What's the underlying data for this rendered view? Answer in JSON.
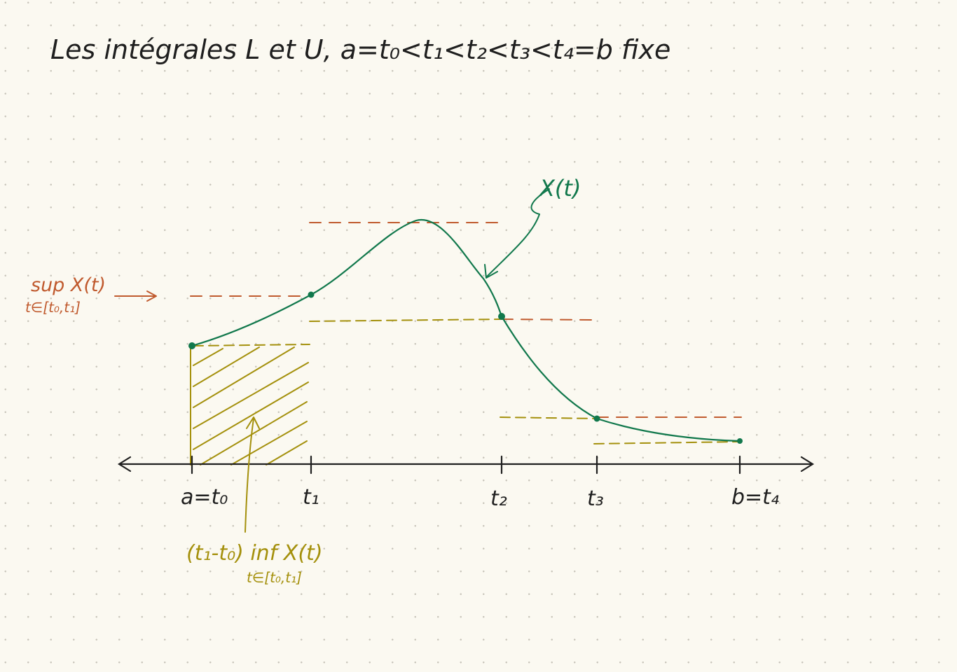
{
  "title": "Les intégrales L et U,   a=t₀<t₁<t₂<t₃<t₄=b fixe",
  "colors": {
    "curve": "#11784c",
    "sup": "#c05a2e",
    "inf": "#a4900c",
    "ink": "#1f1f1f",
    "paper": "#fbf9f1"
  },
  "axis": {
    "ticks": [
      {
        "name": "a=t₀",
        "x_label": "a=t₀"
      },
      {
        "name": "t1",
        "x_label": "t₁"
      },
      {
        "name": "t2",
        "x_label": "t₂"
      },
      {
        "name": "t3",
        "x_label": "t₃"
      },
      {
        "name": "t4",
        "x_label": "b=t₄"
      }
    ]
  },
  "curve_label": "X(t)",
  "sup_annotation": {
    "line1": "sup X(t)",
    "line2": "t∈[t₀,t₁]"
  },
  "inf_annotation": {
    "line1": "(t₁-t₀) inf  X(t)",
    "line2": "t∈[t₀,t₁]"
  }
}
